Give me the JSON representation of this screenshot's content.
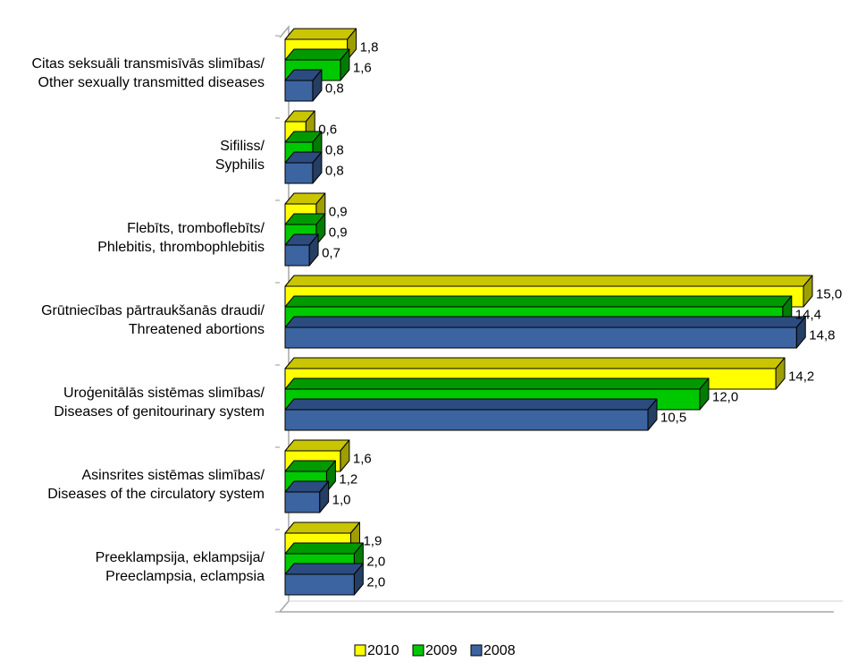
{
  "chart_data": {
    "type": "bar",
    "orientation": "horizontal",
    "style": "3d",
    "title": "",
    "xlabel": "",
    "ylabel": "",
    "xlim": [
      0,
      15.5
    ],
    "grid": false,
    "legend_position": "bottom",
    "categories": [
      [
        "Citas seksuāli transmisīvās slimības/",
        "Other sexually transmitted diseases"
      ],
      [
        "Sifiliss/",
        "Syphilis"
      ],
      [
        "Flebīts, tromboflebīts/",
        "Phlebitis, thrombophlebitis"
      ],
      [
        "Grūtniecības pārtraukšanās draudi/",
        "Threatened abortions"
      ],
      [
        "Uroģenitālās sistēmas slimības/",
        "Diseases of genitourinary system"
      ],
      [
        "Asinsrites sistēmas slimības/",
        "Diseases of the circulatory system"
      ],
      [
        "Preeklampsija, eklampsija/",
        "Preeclampsia, eclampsia"
      ]
    ],
    "series": [
      {
        "name": "2010",
        "color": "#FFFF00",
        "values": [
          1.8,
          0.6,
          0.9,
          15.0,
          14.2,
          1.6,
          1.9
        ],
        "labels": [
          "1,8",
          "0,6",
          "0,9",
          "15,0",
          "14,2",
          "1,6",
          "1,9"
        ]
      },
      {
        "name": "2009",
        "color": "#00C800",
        "values": [
          1.6,
          0.8,
          0.9,
          14.4,
          12.0,
          1.2,
          2.0
        ],
        "labels": [
          "1,6",
          "0,8",
          "0,9",
          "14,4",
          "12,0",
          "1,2",
          "2,0"
        ]
      },
      {
        "name": "2008",
        "color": "#3C64A0",
        "values": [
          0.8,
          0.8,
          0.7,
          14.8,
          10.5,
          1.0,
          2.0
        ],
        "labels": [
          "0,8",
          "0,8",
          "0,7",
          "14,8",
          "10,5",
          "1,0",
          "2,0"
        ]
      }
    ],
    "top_colors": {
      "2010": "#C9C500",
      "2009": "#009A00",
      "2008": "#2C4C80"
    }
  }
}
